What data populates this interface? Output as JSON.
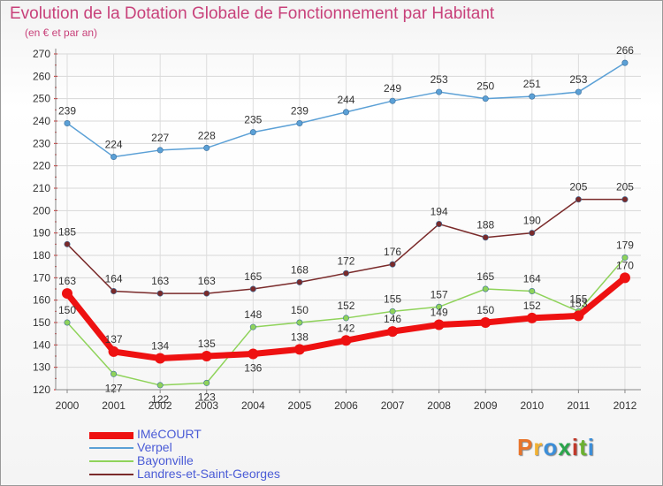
{
  "header": {
    "title": "Evolution de la Dotation Globale de Fonctionnement par Habitant",
    "subtitle": "(en € et par an)"
  },
  "logo": {
    "text": "Proxiti",
    "colors": [
      "#e8742b",
      "#f2b233",
      "#3c8ed8",
      "#2aa54b",
      "#c0392b",
      "#6bb12f",
      "#3c8ed8"
    ]
  },
  "chart_data": {
    "type": "line",
    "title": "Evolution de la Dotation Globale de Fonctionnement par Habitant",
    "subtitle": "(en € et par an)",
    "categories": [
      "2000",
      "2001",
      "2002",
      "2003",
      "2004",
      "2005",
      "2006",
      "2007",
      "2008",
      "2009",
      "2010",
      "2011",
      "2012"
    ],
    "ylim": [
      120,
      270
    ],
    "yticks": [
      120,
      130,
      140,
      150,
      160,
      170,
      180,
      190,
      200,
      210,
      220,
      230,
      240,
      250,
      260,
      270
    ],
    "series": [
      {
        "name": "IMéCOURT",
        "color": "#ee1111",
        "values": [
          163,
          137,
          134,
          135,
          136,
          138,
          142,
          146,
          149,
          150,
          152,
          153,
          170
        ],
        "labels": [
          "163",
          "137",
          "134",
          "135",
          "136",
          "138",
          "142",
          "146",
          "149",
          "150",
          "152",
          "153",
          "170"
        ]
      },
      {
        "name": "Verpel",
        "color": "#5ba0d6",
        "values": [
          239,
          224,
          227,
          228,
          235,
          239,
          244,
          249,
          253,
          250,
          251,
          253,
          266
        ],
        "labels": [
          "239",
          "224",
          "227",
          "228",
          "235",
          "239",
          "244",
          "249",
          "253",
          "250",
          "251",
          "253",
          "266"
        ]
      },
      {
        "name": "Bayonville",
        "color": "#8fd35a",
        "values": [
          150,
          127,
          122,
          123,
          148,
          150,
          152,
          155,
          157,
          165,
          164,
          155,
          179
        ],
        "labels": [
          "150",
          "127",
          "122",
          "123",
          "148",
          "150",
          "152",
          "155",
          "157",
          "165",
          "164",
          "155",
          "179"
        ]
      },
      {
        "name": "Landres-et-Saint-Georges",
        "color": "#7a2a2a",
        "values": [
          185,
          164,
          163,
          163,
          165,
          168,
          172,
          176,
          194,
          188,
          190,
          205,
          205
        ],
        "labels": [
          "185",
          "164",
          "163",
          "163",
          "165",
          "168",
          "172",
          "176",
          "194",
          "188",
          "190",
          "205",
          "205"
        ]
      }
    ]
  }
}
